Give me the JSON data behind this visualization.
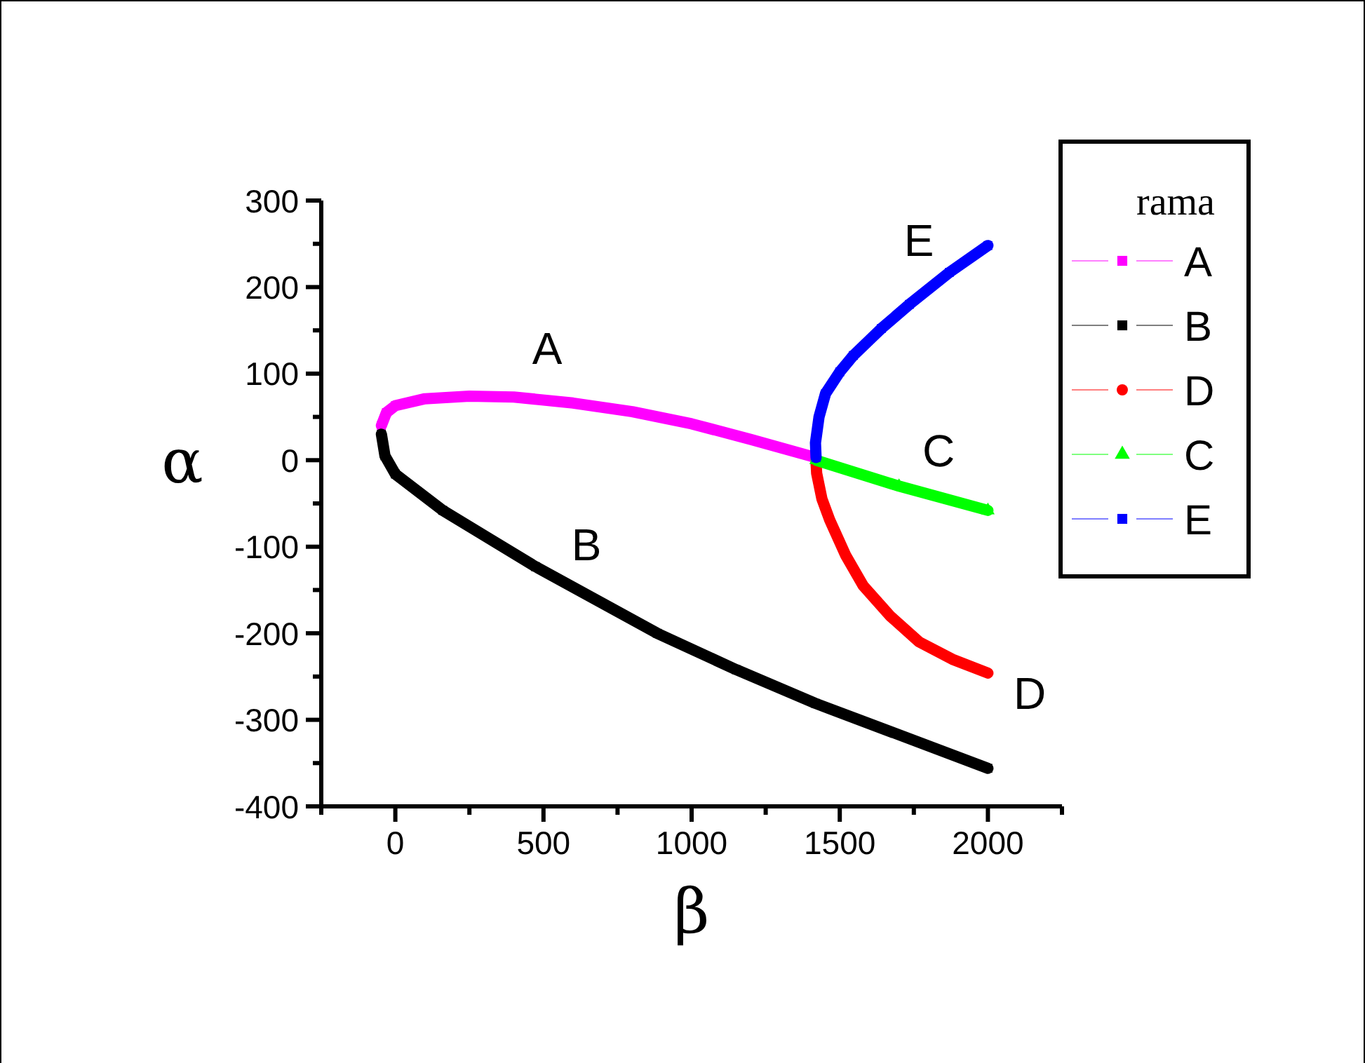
{
  "chart_data": {
    "type": "line",
    "xlabel": "β",
    "ylabel": "α",
    "legend_title": "rama",
    "legend": "right",
    "grid": false,
    "line_style": "solid",
    "xlim": [
      -250,
      2250
    ],
    "ylim": [
      -400,
      300
    ],
    "xticks": [
      {
        "value": -250,
        "label": null
      },
      0,
      {
        "value": 250,
        "label": null
      },
      500,
      {
        "value": 750,
        "label": null
      },
      1000,
      {
        "value": 1250,
        "label": null
      },
      1500,
      {
        "value": 1750,
        "label": null
      },
      2000,
      {
        "value": 2250,
        "label": null
      }
    ],
    "yticks": [
      -400,
      {
        "value": -350,
        "label": null
      },
      -300,
      {
        "value": -250,
        "label": null
      },
      -200,
      {
        "value": -150,
        "label": null
      },
      -100,
      {
        "value": -50,
        "label": null
      },
      0,
      {
        "value": 50,
        "label": null
      },
      100,
      {
        "value": 150,
        "label": null
      },
      200,
      {
        "value": 250,
        "label": null
      },
      300
    ],
    "series": [
      {
        "name": "A",
        "color": "#ff00ff",
        "marker": "square",
        "x": [
          -47,
          -30,
          0,
          100,
          250,
          400,
          600,
          800,
          1000,
          1200,
          1420
        ],
        "values": [
          40,
          55,
          63,
          71,
          74,
          73,
          66,
          56,
          42,
          24,
          3
        ]
      },
      {
        "name": "B",
        "color": "#000000",
        "marker": "square",
        "x": [
          -47,
          -35,
          0,
          160,
          473,
          884,
          1150,
          1418,
          2000
        ],
        "values": [
          30,
          5,
          -16,
          -58,
          -123,
          -200,
          -242,
          -281,
          -356
        ]
      },
      {
        "name": "D",
        "color": "#ff0000",
        "marker": "circle",
        "x": [
          1420,
          1422,
          1440,
          1466,
          1520,
          1579,
          1670,
          1768,
          1880,
          2000
        ],
        "values": [
          -3,
          -15,
          -45,
          -69,
          -110,
          -145,
          -180,
          -210,
          -230,
          -246
        ]
      },
      {
        "name": "C",
        "color": "#00ff00",
        "marker": "triangle",
        "x": [
          1420,
          1700,
          2000
        ],
        "values": [
          0,
          -30,
          -58
        ]
      },
      {
        "name": "E",
        "color": "#0000ff",
        "marker": "square",
        "x": [
          1420,
          1418,
          1430,
          1452,
          1500,
          1546,
          1640,
          1735,
          1870,
          2000
        ],
        "values": [
          3,
          20,
          50,
          77,
          102,
          121,
          152,
          180,
          217,
          248
        ]
      }
    ],
    "annotations": [
      "A",
      "B",
      "C",
      "D",
      "E"
    ]
  }
}
